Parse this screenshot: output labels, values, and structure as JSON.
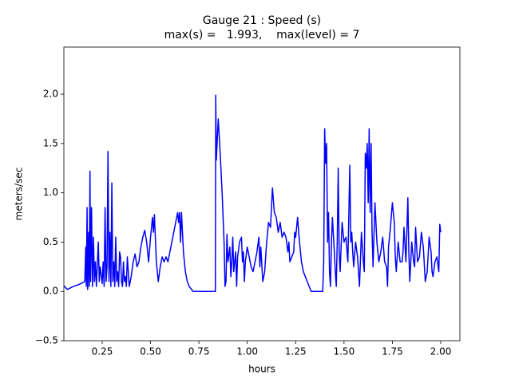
{
  "chart_data": {
    "type": "line",
    "title": "Gauge 21 : Speed (s)",
    "subtitle": "max(s) =   1.993,    max(level) = 7",
    "x_label": "hours",
    "y_label": "meters/sec",
    "xlim": [
      0.052,
      2.099
    ],
    "ylim": [
      -0.5,
      2.478
    ],
    "xticks": [
      0.25,
      {
        "value": 0.5,
        "label": "0.50"
      },
      0.75,
      {
        "value": 1,
        "label": "1.00"
      },
      1.25,
      {
        "value": 1.5,
        "label": "1.50"
      },
      1.75,
      {
        "value": 2,
        "label": "2.00"
      }
    ],
    "yticks": [
      {
        "value": -0.5,
        "label": "−0.5"
      },
      {
        "value": 0,
        "label": "0.0"
      },
      0.5,
      {
        "value": 1,
        "label": "1.0"
      },
      1.5,
      {
        "value": 2,
        "label": "2.0"
      }
    ],
    "grid": false,
    "series": [
      {
        "color": "#0000ff",
        "x": [
          0.05,
          0.07,
          0.1,
          0.13,
          0.16,
          0.165,
          0.168,
          0.172,
          0.175,
          0.18,
          0.183,
          0.187,
          0.19,
          0.195,
          0.2,
          0.205,
          0.21,
          0.215,
          0.22,
          0.23,
          0.235,
          0.24,
          0.25,
          0.255,
          0.26,
          0.265,
          0.27,
          0.275,
          0.28,
          0.285,
          0.29,
          0.295,
          0.3,
          0.305,
          0.31,
          0.315,
          0.32,
          0.325,
          0.33,
          0.335,
          0.34,
          0.345,
          0.35,
          0.355,
          0.36,
          0.365,
          0.37,
          0.375,
          0.38,
          0.385,
          0.39,
          0.4,
          0.41,
          0.42,
          0.43,
          0.44,
          0.45,
          0.46,
          0.47,
          0.48,
          0.49,
          0.5,
          0.51,
          0.515,
          0.52,
          0.53,
          0.54,
          0.55,
          0.56,
          0.57,
          0.58,
          0.59,
          0.6,
          0.61,
          0.62,
          0.63,
          0.64,
          0.645,
          0.65,
          0.655,
          0.66,
          0.67,
          0.68,
          0.69,
          0.7,
          0.72,
          0.8,
          0.835,
          0.837,
          0.84,
          0.845,
          0.85,
          0.86,
          0.87,
          0.88,
          0.885,
          0.89,
          0.895,
          0.9,
          0.91,
          0.915,
          0.92,
          0.925,
          0.93,
          0.94,
          0.945,
          0.95,
          0.96,
          0.97,
          0.975,
          0.98,
          0.985,
          0.99,
          1.0,
          1.01,
          1.02,
          1.03,
          1.04,
          1.05,
          1.06,
          1.065,
          1.07,
          1.08,
          1.09,
          1.1,
          1.11,
          1.12,
          1.13,
          1.14,
          1.15,
          1.16,
          1.17,
          1.18,
          1.19,
          1.2,
          1.21,
          1.215,
          1.22,
          1.23,
          1.24,
          1.245,
          1.25,
          1.26,
          1.27,
          1.28,
          1.29,
          1.3,
          1.31,
          1.32,
          1.33,
          1.39,
          1.395,
          1.4,
          1.405,
          1.41,
          1.415,
          1.42,
          1.425,
          1.43,
          1.435,
          1.44,
          1.45,
          1.455,
          1.46,
          1.465,
          1.47,
          1.475,
          1.48,
          1.49,
          1.5,
          1.51,
          1.52,
          1.53,
          1.535,
          1.54,
          1.545,
          1.55,
          1.56,
          1.57,
          1.58,
          1.59,
          1.6,
          1.605,
          1.61,
          1.615,
          1.62,
          1.625,
          1.63,
          1.635,
          1.64,
          1.645,
          1.65,
          1.66,
          1.67,
          1.68,
          1.69,
          1.7,
          1.71,
          1.72,
          1.725,
          1.73,
          1.74,
          1.75,
          1.76,
          1.765,
          1.77,
          1.78,
          1.79,
          1.8,
          1.805,
          1.81,
          1.82,
          1.83,
          1.835,
          1.84,
          1.85,
          1.86,
          1.865,
          1.87,
          1.88,
          1.89,
          1.9,
          1.91,
          1.92,
          1.93,
          1.94,
          1.95,
          1.955,
          1.96,
          1.97,
          1.98,
          1.99,
          1.995,
          2.0
        ],
        "values": [
          0.06,
          0.02,
          0.05,
          0.07,
          0.1,
          0.45,
          0.05,
          0.85,
          0.02,
          0.6,
          0.05,
          1.22,
          0.1,
          0.85,
          0.05,
          0.55,
          0.1,
          0.3,
          0.05,
          0.5,
          0.1,
          0.25,
          0.08,
          0.3,
          0.05,
          0.85,
          0.1,
          0.25,
          1.42,
          0.1,
          0.6,
          0.05,
          1.1,
          0.1,
          0.3,
          0.05,
          0.55,
          0.1,
          0.2,
          0.05,
          0.4,
          0.35,
          0.1,
          0.05,
          0.3,
          0.1,
          0.15,
          0.05,
          0.35,
          0.2,
          0.05,
          0.15,
          0.3,
          0.38,
          0.25,
          0.3,
          0.45,
          0.55,
          0.62,
          0.5,
          0.3,
          0.55,
          0.75,
          0.6,
          0.78,
          0.3,
          0.1,
          0.25,
          0.35,
          0.3,
          0.35,
          0.3,
          0.4,
          0.5,
          0.6,
          0.7,
          0.8,
          0.7,
          0.8,
          0.5,
          0.8,
          0.4,
          0.2,
          0.1,
          0.05,
          0,
          0,
          0,
          1.99,
          1.33,
          1.55,
          1.75,
          1.4,
          1.0,
          0.5,
          0.05,
          0.1,
          0.58,
          0.3,
          0.45,
          0.15,
          0.3,
          0.55,
          0.2,
          0.4,
          0.05,
          0.35,
          0.5,
          0.55,
          0.3,
          0.4,
          0.1,
          0.3,
          0.45,
          0.35,
          0.25,
          0.2,
          0.3,
          0.4,
          0.55,
          0.25,
          0.45,
          0.1,
          0.2,
          0.5,
          0.7,
          0.65,
          1.05,
          0.8,
          0.75,
          0.6,
          0.7,
          0.55,
          0.6,
          0.55,
          0.4,
          0.5,
          0.3,
          0.35,
          0.4,
          0.6,
          0.55,
          0.75,
          0.5,
          0.3,
          0.2,
          0.15,
          0.1,
          0.05,
          0,
          0,
          0.3,
          1.65,
          1.3,
          1.5,
          0.5,
          0.8,
          0.2,
          0.05,
          0.5,
          0.75,
          0.4,
          0.2,
          0.05,
          0.5,
          1.25,
          0.4,
          0.2,
          0.7,
          0.5,
          0.55,
          0.3,
          1.28,
          0.5,
          0.6,
          0.4,
          0.25,
          0.5,
          0.35,
          0.05,
          0.6,
          0.3,
          0.2,
          1.4,
          1.25,
          1.5,
          0.9,
          1.65,
          0.8,
          1.5,
          0.6,
          0.25,
          0.9,
          0.5,
          0.3,
          0.4,
          0.55,
          0.3,
          0.25,
          0.05,
          0.45,
          0.65,
          0.9,
          0.7,
          0.35,
          0.2,
          0.5,
          0.3,
          0.3,
          0.4,
          0.65,
          0.3,
          0.95,
          0.4,
          0.1,
          0.5,
          0.3,
          0.25,
          0.65,
          0.3,
          0.35,
          0.6,
          0.45,
          0.1,
          0.2,
          0.55,
          0.4,
          0.2,
          0.15,
          0.3,
          0.35,
          0.2,
          0.68,
          0.6
        ]
      }
    ]
  }
}
